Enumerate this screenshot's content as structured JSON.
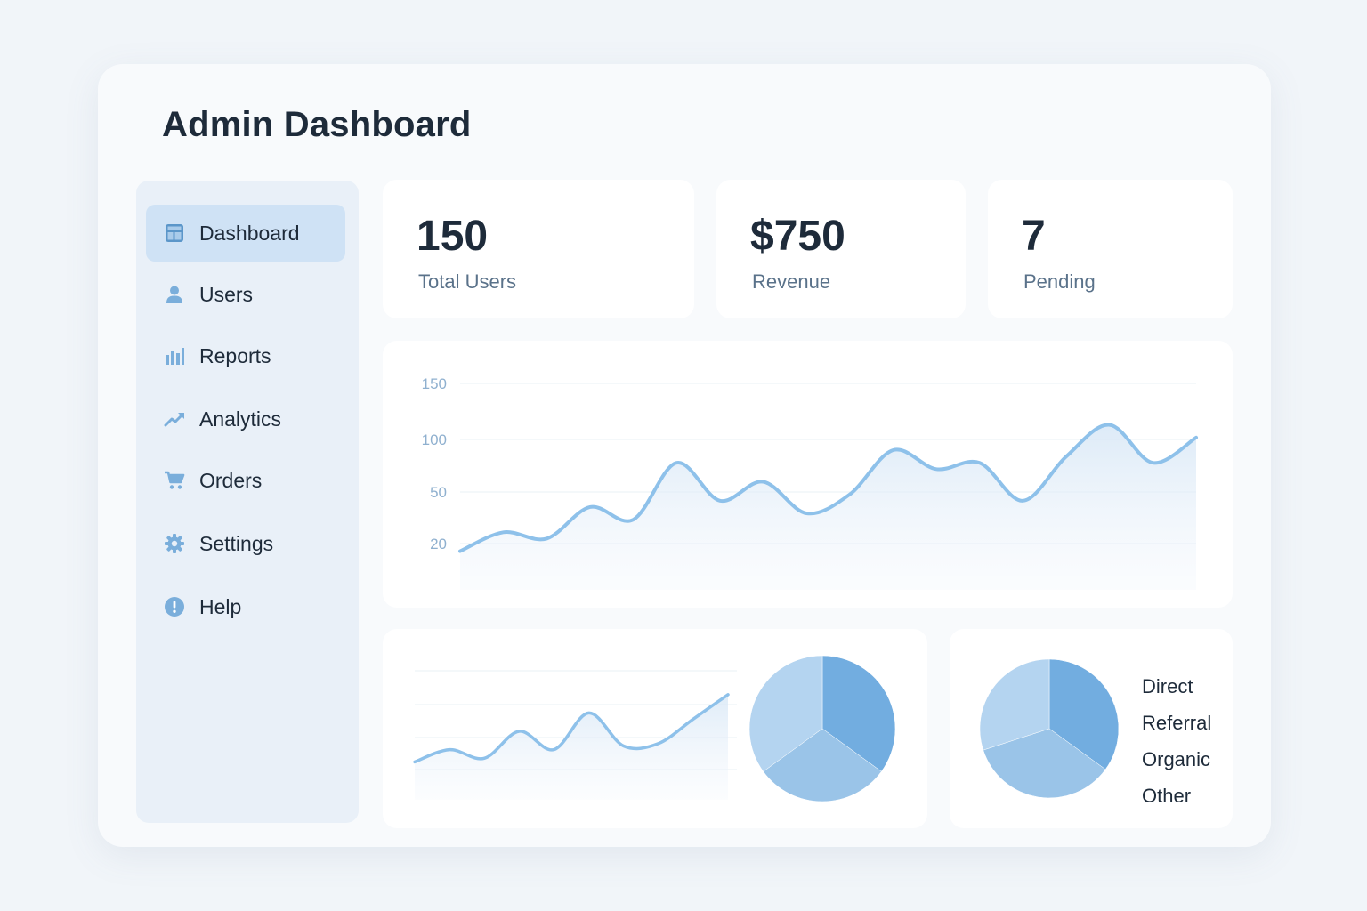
{
  "app": {
    "title": "Admin Dashboard"
  },
  "sidebar": {
    "items": [
      {
        "label": "Dashboard",
        "icon": "dashboard-icon",
        "active": true
      },
      {
        "label": "Users",
        "icon": "user-icon",
        "active": false
      },
      {
        "label": "Reports",
        "icon": "bar-chart-icon",
        "active": false
      },
      {
        "label": "Analytics",
        "icon": "trend-icon",
        "active": false
      },
      {
        "label": "Orders",
        "icon": "cart-icon",
        "active": false
      },
      {
        "label": "Settings",
        "icon": "gear-icon",
        "active": false
      },
      {
        "label": "Help",
        "icon": "help-icon",
        "active": false
      }
    ]
  },
  "stats": [
    {
      "value": "150",
      "label": "Total Users"
    },
    {
      "value": "$750",
      "label": "Revenue"
    },
    {
      "value": "7",
      "label": "Pending"
    }
  ],
  "colors": {
    "accent": "#8ec1ea",
    "active_nav": "#cfe2f5",
    "sidebar_bg": "#e9f0f8",
    "text_primary": "#1e2b3a",
    "pie_light": "#b4d4f0",
    "pie_mid": "#9ac4e8",
    "pie_dark": "#72ade0"
  },
  "chart_data": [
    {
      "type": "area",
      "yticks": [
        "150",
        "100",
        "50",
        "20"
      ],
      "grid": true,
      "series": [
        {
          "values": [
            20,
            35,
            30,
            55,
            45,
            90,
            60,
            75,
            50,
            65,
            100,
            85,
            90,
            60,
            95,
            120,
            90,
            110
          ]
        }
      ]
    },
    {
      "type": "area",
      "grid": true,
      "series": [
        {
          "values": [
            15,
            25,
            18,
            40,
            25,
            55,
            28,
            30,
            50,
            70
          ]
        }
      ]
    },
    {
      "type": "pie",
      "slices": [
        {
          "value": 35,
          "color": "#72ade0"
        },
        {
          "value": 30,
          "color": "#9ac4e8"
        },
        {
          "value": 35,
          "color": "#b4d4f0"
        }
      ]
    },
    {
      "type": "pie",
      "legend": [
        "Direct",
        "Referral",
        "Organic",
        "Other"
      ],
      "legend_position": "right",
      "slices": [
        {
          "label": "Direct",
          "value": 35,
          "color": "#72ade0"
        },
        {
          "label": "Referral",
          "value": 35,
          "color": "#9ac4e8"
        },
        {
          "label": "Organic",
          "value": 30,
          "color": "#b4d4f0"
        }
      ]
    }
  ]
}
